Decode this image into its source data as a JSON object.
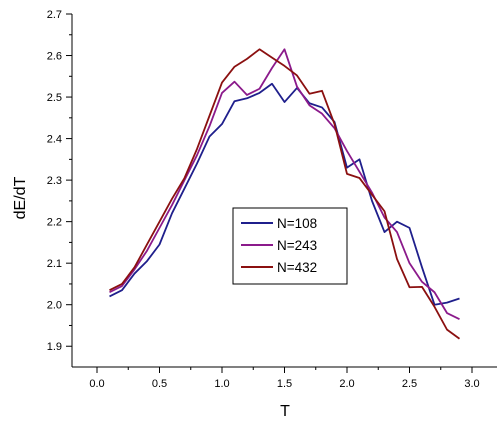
{
  "chart_data": {
    "type": "line",
    "title": "",
    "xlabel": "T",
    "ylabel": "dE/dT",
    "xlim": [
      -0.2,
      3.2
    ],
    "ylim": [
      1.85,
      2.7
    ],
    "x_ticks": [
      0.0,
      0.5,
      1.0,
      1.5,
      2.0,
      2.5,
      3.0
    ],
    "x_tick_labels": [
      "0.0",
      "0.5",
      "1.0",
      "1.5",
      "2.0",
      "2.5",
      "3.0"
    ],
    "y_ticks": [
      1.9,
      2.0,
      2.1,
      2.2,
      2.3,
      2.4,
      2.5,
      2.6,
      2.7
    ],
    "y_tick_labels": [
      "1.9",
      "2.0",
      "2.1",
      "2.2",
      "2.3",
      "2.4",
      "2.5",
      "2.6",
      "2.7"
    ],
    "grid": false,
    "legend_position": "center-right",
    "x": [
      0.1,
      0.2,
      0.3,
      0.4,
      0.5,
      0.6,
      0.7,
      0.8,
      0.9,
      1.0,
      1.1,
      1.2,
      1.3,
      1.4,
      1.5,
      1.6,
      1.7,
      1.8,
      1.9,
      2.0,
      2.1,
      2.2,
      2.3,
      2.4,
      2.5,
      2.6,
      2.7,
      2.8,
      2.9
    ],
    "series": [
      {
        "name": "N=108",
        "color": "#1f1f8c",
        "values": [
          2.02,
          2.035,
          2.075,
          2.105,
          2.145,
          2.22,
          2.28,
          2.34,
          2.405,
          2.435,
          2.49,
          2.497,
          2.51,
          2.532,
          2.488,
          2.522,
          2.485,
          2.475,
          2.44,
          2.33,
          2.35,
          2.25,
          2.175,
          2.2,
          2.185,
          2.09,
          2.0,
          2.005,
          2.015
        ]
      },
      {
        "name": "N=243",
        "color": "#8b1a8b",
        "values": [
          2.03,
          2.045,
          2.085,
          2.13,
          2.185,
          2.24,
          2.3,
          2.36,
          2.43,
          2.51,
          2.537,
          2.505,
          2.52,
          2.57,
          2.615,
          2.525,
          2.48,
          2.46,
          2.425,
          2.37,
          2.32,
          2.27,
          2.21,
          2.175,
          2.1,
          2.055,
          2.03,
          1.98,
          1.965
        ]
      },
      {
        "name": "N=432",
        "color": "#8b1010",
        "values": [
          2.035,
          2.05,
          2.09,
          2.145,
          2.2,
          2.255,
          2.305,
          2.375,
          2.455,
          2.535,
          2.573,
          2.592,
          2.615,
          2.595,
          2.575,
          2.552,
          2.508,
          2.515,
          2.435,
          2.315,
          2.305,
          2.265,
          2.225,
          2.11,
          2.042,
          2.043,
          1.995,
          1.94,
          1.918
        ]
      }
    ]
  }
}
